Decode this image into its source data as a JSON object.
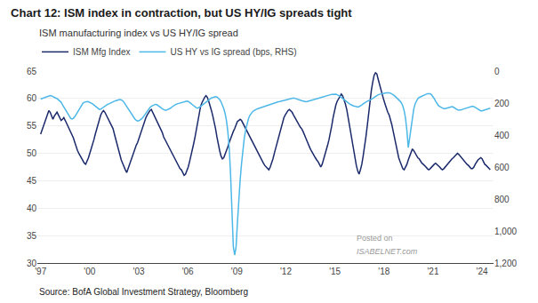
{
  "chart_data": {
    "type": "line",
    "title": "Chart 12: ISM index in contraction, but US HY/IG spreads tight",
    "subtitle": "ISM manufacturing index vs US HY/IG spread",
    "annotations": [
      "Source: BofA Global Investment Strategy, Bloomberg",
      "Posted on",
      "ISABELNET.com"
    ],
    "x": [
      1997,
      1997.084,
      1997.167,
      1997.251,
      1997.334,
      1997.418,
      1997.502,
      1997.585,
      1997.669,
      1997.752,
      1997.836,
      1997.919,
      1998.003,
      1998.087,
      1998.17,
      1998.254,
      1998.337,
      1998.421,
      1998.505,
      1998.588,
      1998.672,
      1998.755,
      1998.839,
      1998.922,
      1999.006,
      1999.09,
      1999.173,
      1999.257,
      1999.34,
      1999.424,
      1999.508,
      1999.591,
      1999.675,
      1999.758,
      1999.842,
      1999.926,
      2000.009,
      2000.093,
      2000.176,
      2000.26,
      2000.343,
      2000.427,
      2000.511,
      2000.594,
      2000.678,
      2000.761,
      2000.845,
      2000.929,
      2001.012,
      2001.096,
      2001.179,
      2001.263,
      2001.347,
      2001.43,
      2001.514,
      2001.597,
      2001.681,
      2001.764,
      2001.848,
      2001.932,
      2002.015,
      2002.099,
      2002.182,
      2002.266,
      2002.35,
      2002.433,
      2002.517,
      2002.6,
      2002.684,
      2002.767,
      2002.851,
      2002.935,
      2003.018,
      2003.102,
      2003.185,
      2003.269,
      2003.353,
      2003.436,
      2003.52,
      2003.603,
      2003.687,
      2003.771,
      2003.854,
      2003.938,
      2004.021,
      2004.105,
      2004.188,
      2004.272,
      2004.356,
      2004.439,
      2004.523,
      2004.606,
      2004.69,
      2004.774,
      2004.857,
      2004.941,
      2005.024,
      2005.108,
      2005.191,
      2005.275,
      2005.359,
      2005.442,
      2005.526,
      2005.609,
      2005.693,
      2005.777,
      2005.86,
      2005.944,
      2006.027,
      2006.111,
      2006.195,
      2006.278,
      2006.362,
      2006.445,
      2006.529,
      2006.612,
      2006.696,
      2006.78,
      2006.863,
      2006.947,
      2007.03,
      2007.114,
      2007.198,
      2007.281,
      2007.365,
      2007.448,
      2007.532,
      2007.616,
      2007.699,
      2007.783,
      2007.866,
      2007.95,
      2008.033,
      2008.117,
      2008.201,
      2008.284,
      2008.368,
      2008.451,
      2008.535,
      2008.619,
      2008.702,
      2008.786,
      2008.869,
      2008.953,
      2009.036,
      2009.12,
      2009.204,
      2009.287,
      2009.371,
      2009.454,
      2009.538,
      2009.622,
      2009.705,
      2009.789,
      2009.872,
      2009.956,
      2010.04,
      2010.123,
      2010.207,
      2010.29,
      2010.374,
      2010.457,
      2010.541,
      2010.625,
      2010.708,
      2010.792,
      2010.875,
      2010.959,
      2011.043,
      2011.126,
      2011.21,
      2011.293,
      2011.377,
      2011.46,
      2011.544,
      2011.628,
      2011.711,
      2011.795,
      2011.878,
      2011.962,
      2012.046,
      2012.129,
      2012.213,
      2012.296,
      2012.38,
      2012.464,
      2012.547,
      2012.631,
      2012.714,
      2012.798,
      2012.881,
      2012.965,
      2013.049,
      2013.132,
      2013.216,
      2013.299,
      2013.383,
      2013.467,
      2013.55,
      2013.634,
      2013.717,
      2013.801,
      2013.884,
      2013.968,
      2014.052,
      2014.135,
      2014.219,
      2014.302,
      2014.386,
      2014.47,
      2014.553,
      2014.637,
      2014.72,
      2014.804,
      2014.888,
      2014.971,
      2015.055,
      2015.138,
      2015.222,
      2015.305,
      2015.389,
      2015.473,
      2015.556,
      2015.64,
      2015.723,
      2015.807,
      2015.891,
      2015.974,
      2016.058,
      2016.141,
      2016.225,
      2016.309,
      2016.392,
      2016.476,
      2016.559,
      2016.643,
      2016.726,
      2016.81,
      2016.894,
      2016.977,
      2017.061,
      2017.144,
      2017.228,
      2017.312,
      2017.395,
      2017.479,
      2017.562,
      2017.646,
      2017.729,
      2017.813,
      2017.897,
      2017.98,
      2018.064,
      2018.147,
      2018.231,
      2018.315,
      2018.398,
      2018.482,
      2018.565,
      2018.649,
      2018.733,
      2018.816,
      2018.9,
      2018.983,
      2019.067,
      2019.15,
      2019.234,
      2019.318,
      2019.401,
      2019.485,
      2019.568,
      2019.652,
      2019.736,
      2019.819,
      2019.903,
      2019.986,
      2020.07,
      2020.153,
      2020.237,
      2020.321,
      2020.404,
      2020.488,
      2020.571,
      2020.655,
      2020.739,
      2020.822,
      2020.906,
      2020.989,
      2021.073,
      2021.157,
      2021.24,
      2021.324,
      2021.407,
      2021.491,
      2021.574,
      2021.658,
      2021.742,
      2021.825,
      2021.909,
      2021.992,
      2022.076,
      2022.16,
      2022.243,
      2022.327,
      2022.41,
      2022.494,
      2022.578,
      2022.661,
      2022.745,
      2022.828,
      2022.912,
      2022.995,
      2023.079,
      2023.163,
      2023.246,
      2023.33,
      2023.413,
      2023.497,
      2023.581,
      2023.664,
      2023.748,
      2023.831,
      2023.915,
      2023.998,
      2024.082,
      2024.166,
      2024.249,
      2024.333,
      2024.416,
      2024.5
    ],
    "series": [
      {
        "name": "ISM Mfg Index",
        "color": "#1b2a6b",
        "values": [
          53.5,
          54.2,
          55.0,
          55.5,
          56.5,
          57.2,
          57.8,
          57.5,
          56.8,
          56.2,
          56.8,
          57.2,
          57.5,
          57.0,
          56.5,
          56.0,
          56.2,
          56.5,
          56.0,
          55.5,
          55.0,
          54.5,
          54.0,
          53.5,
          52.8,
          52.0,
          51.2,
          50.5,
          50.0,
          49.5,
          49.0,
          48.5,
          48.2,
          48.0,
          48.5,
          49.2,
          50.0,
          50.8,
          51.5,
          52.5,
          53.5,
          54.5,
          55.5,
          56.2,
          57.0,
          57.5,
          57.8,
          57.5,
          57.0,
          56.5,
          56.0,
          55.5,
          55.0,
          54.5,
          53.5,
          52.5,
          51.5,
          50.5,
          49.5,
          48.8,
          48.2,
          47.5,
          47.0,
          46.5,
          47.2,
          48.0,
          48.8,
          49.5,
          50.2,
          51.0,
          51.5,
          52.0,
          52.8,
          53.5,
          54.2,
          55.0,
          55.8,
          56.5,
          57.0,
          57.5,
          57.8,
          58.0,
          57.5,
          57.0,
          56.5,
          56.0,
          55.5,
          55.0,
          54.5,
          53.8,
          53.0,
          52.5,
          52.0,
          51.5,
          51.0,
          50.5,
          50.0,
          49.5,
          49.0,
          48.5,
          48.0,
          47.5,
          47.2,
          47.0,
          46.5,
          46.0,
          46.2,
          46.8,
          47.5,
          48.5,
          49.5,
          50.5,
          51.8,
          53.0,
          54.5,
          56.0,
          57.5,
          58.5,
          59.2,
          59.8,
          60.2,
          60.5,
          60.2,
          59.5,
          58.8,
          57.8,
          56.8,
          55.8,
          54.5,
          53.0,
          51.5,
          50.5,
          49.5,
          49.0,
          49.2,
          49.8,
          50.5,
          51.2,
          52.0,
          52.8,
          53.5,
          54.0,
          54.5,
          55.2,
          55.8,
          56.0,
          56.2,
          56.0,
          55.5,
          55.0,
          54.5,
          54.0,
          53.5,
          53.0,
          52.5,
          52.0,
          51.5,
          51.0,
          50.5,
          50.0,
          49.5,
          49.0,
          48.5,
          48.2,
          47.8,
          47.5,
          47.2,
          47.0,
          47.5,
          48.2,
          49.0,
          50.0,
          51.0,
          52.0,
          53.0,
          54.0,
          55.0,
          55.8,
          56.5,
          57.0,
          57.5,
          57.8,
          58.0,
          57.8,
          57.5,
          57.0,
          56.5,
          56.0,
          55.5,
          55.2,
          54.8,
          54.5,
          54.0,
          53.5,
          52.8,
          52.2,
          51.5,
          51.0,
          50.5,
          50.0,
          49.5,
          49.2,
          48.8,
          48.5,
          48.0,
          47.5,
          48.0,
          48.8,
          49.5,
          50.5,
          51.5,
          52.5,
          53.5,
          55.0,
          56.5,
          57.8,
          58.8,
          59.5,
          60.0,
          60.5,
          60.8,
          60.5,
          59.8,
          59.0,
          58.0,
          56.5,
          55.0,
          53.5,
          52.0,
          50.5,
          49.0,
          47.8,
          46.8,
          46.2,
          47.0,
          48.0,
          49.5,
          51.0,
          53.0,
          55.0,
          57.5,
          59.5,
          61.5,
          63.0,
          64.2,
          64.7,
          64.5,
          63.5,
          62.5,
          61.5,
          60.5,
          59.8,
          59.0,
          58.2,
          57.5,
          57.0,
          56.2,
          55.2,
          54.0,
          52.8,
          51.5,
          50.2,
          49.2,
          48.5,
          47.8,
          47.2,
          47.0,
          47.5,
          48.0,
          48.8,
          49.5,
          50.2,
          50.8,
          50.5,
          50.0,
          49.5,
          49.2,
          49.0,
          48.5,
          48.2,
          48.0,
          47.8,
          47.5,
          47.2,
          47.0,
          47.2,
          47.5,
          47.8,
          48.0,
          48.2,
          48.0,
          47.8,
          47.5,
          47.2,
          47.0,
          47.2,
          47.5,
          47.8,
          48.2,
          48.5,
          48.8,
          49.0,
          49.2,
          49.5,
          49.8,
          50.0,
          49.8,
          49.5,
          49.2,
          48.8,
          48.5,
          48.2,
          48.0,
          47.8,
          47.5,
          47.2,
          47.2,
          47.5,
          48.0,
          48.5,
          48.8,
          49.0,
          49.2,
          49.0,
          48.5,
          48.0,
          47.8,
          47.5,
          47.2,
          47.0
        ]
      },
      {
        "name": "US HY vs IG spread (bps, RHS)",
        "color": "#4db8e8",
        "axis": "y2",
        "values": [
          175,
          172,
          168,
          165,
          162,
          158,
          155,
          153,
          155,
          158,
          162,
          168,
          172,
          178,
          185,
          195,
          210,
          225,
          240,
          255,
          270,
          285,
          295,
          300,
          295,
          285,
          270,
          255,
          240,
          225,
          210,
          200,
          195,
          192,
          190,
          192,
          195,
          200,
          205,
          212,
          220,
          228,
          235,
          240,
          238,
          232,
          225,
          218,
          212,
          208,
          205,
          200,
          195,
          190,
          188,
          185,
          182,
          180,
          178,
          180,
          185,
          195,
          208,
          225,
          238,
          252,
          265,
          278,
          290,
          300,
          308,
          312,
          310,
          305,
          298,
          288,
          275,
          262,
          250,
          238,
          228,
          220,
          215,
          210,
          208,
          210,
          215,
          220,
          228,
          235,
          240,
          245,
          245,
          242,
          238,
          232,
          225,
          218,
          212,
          208,
          205,
          202,
          200,
          198,
          195,
          192,
          190,
          188,
          190,
          195,
          202,
          210,
          218,
          225,
          230,
          232,
          228,
          222,
          215,
          208,
          200,
          192,
          185,
          178,
          172,
          168,
          165,
          162,
          160,
          162,
          168,
          178,
          192,
          210,
          235,
          265,
          310,
          380,
          480,
          650,
          900,
          1100,
          1150,
          1100,
          950,
          800,
          680,
          580,
          490,
          420,
          370,
          330,
          300,
          278,
          265,
          255,
          248,
          242,
          238,
          235,
          232,
          228,
          225,
          222,
          218,
          215,
          212,
          210,
          208,
          205,
          202,
          200,
          198,
          195,
          192,
          190,
          188,
          185,
          182,
          180,
          178,
          175,
          172,
          170,
          168,
          168,
          170,
          172,
          175,
          178,
          182,
          185,
          188,
          190,
          192,
          190,
          188,
          185,
          182,
          180,
          178,
          175,
          172,
          170,
          168,
          165,
          162,
          160,
          158,
          155,
          152,
          150,
          148,
          146,
          145,
          144,
          145,
          148,
          152,
          158,
          165,
          172,
          180,
          188,
          195,
          200,
          205,
          210,
          215,
          218,
          220,
          222,
          225,
          222,
          218,
          212,
          205,
          198,
          192,
          188,
          185,
          182,
          178,
          172,
          165,
          158,
          152,
          148,
          145,
          142,
          140,
          138,
          137,
          136,
          135,
          136,
          138,
          142,
          148,
          155,
          162,
          170,
          178,
          188,
          200,
          218,
          248,
          295,
          372,
          478,
          420,
          348,
          285,
          238,
          205,
          185,
          172,
          165,
          160,
          156,
          152,
          148,
          145,
          142,
          140,
          142,
          148,
          158,
          172,
          188,
          202,
          215,
          222,
          228,
          232,
          235,
          235,
          232,
          228,
          225,
          222,
          222,
          225,
          232,
          238,
          242,
          245,
          245,
          242,
          238,
          235,
          232,
          230,
          228,
          225,
          222,
          220,
          222,
          228,
          235,
          240,
          245,
          248,
          248,
          245,
          242,
          240,
          238,
          235,
          232
        ]
      }
    ],
    "xlim": [
      1996.8,
      2024.7
    ],
    "xticks": [
      {
        "value": 1997,
        "label": "'97"
      },
      {
        "value": 2000,
        "label": "'00"
      },
      {
        "value": 2003,
        "label": "'03"
      },
      {
        "value": 2006,
        "label": "'06"
      },
      {
        "value": 2009,
        "label": "'09"
      },
      {
        "value": 2012,
        "label": "'12"
      },
      {
        "value": 2015,
        "label": "'15"
      },
      {
        "value": 2018,
        "label": "'18"
      },
      {
        "value": 2021,
        "label": "'21"
      },
      {
        "value": 2024,
        "label": "'24"
      }
    ],
    "ylim": [
      30,
      65
    ],
    "yticks": [
      30,
      35,
      40,
      45,
      50,
      55,
      60,
      65
    ],
    "y2lim": [
      1200,
      0
    ],
    "y2ticks": [
      0,
      200,
      400,
      600,
      800,
      {
        "value": 1000,
        "label": "1,000"
      },
      {
        "value": 1200,
        "label": "1,200"
      }
    ],
    "grid": true,
    "legend": "upper left"
  }
}
